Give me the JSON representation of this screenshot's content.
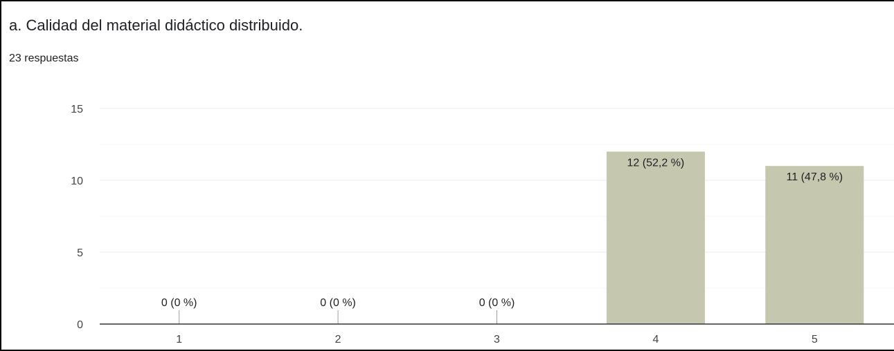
{
  "header": {
    "title": "a. Calidad del material didáctico distribuido.",
    "responses": "23 respuestas"
  },
  "colors": {
    "bar": "#c5c7af",
    "grid": "#ebebeb",
    "axis": "#333333",
    "text": "#202124",
    "tick_text": "#444444"
  },
  "chart_data": {
    "type": "bar",
    "title": "a. Calidad del material didáctico distribuido.",
    "subtitle": "23 respuestas",
    "categories": [
      "1",
      "2",
      "3",
      "4",
      "5"
    ],
    "values": [
      0,
      0,
      0,
      12,
      11
    ],
    "data_labels": [
      "0 (0 %)",
      "0 (0 %)",
      "0 (0 %)",
      "12 (52,2 %)",
      "11 (47,8 %)"
    ],
    "xlabel": "",
    "ylabel": "",
    "ylim": [
      0,
      15
    ],
    "yticks": [
      "0",
      "5",
      "10",
      "15"
    ],
    "grid": true
  }
}
